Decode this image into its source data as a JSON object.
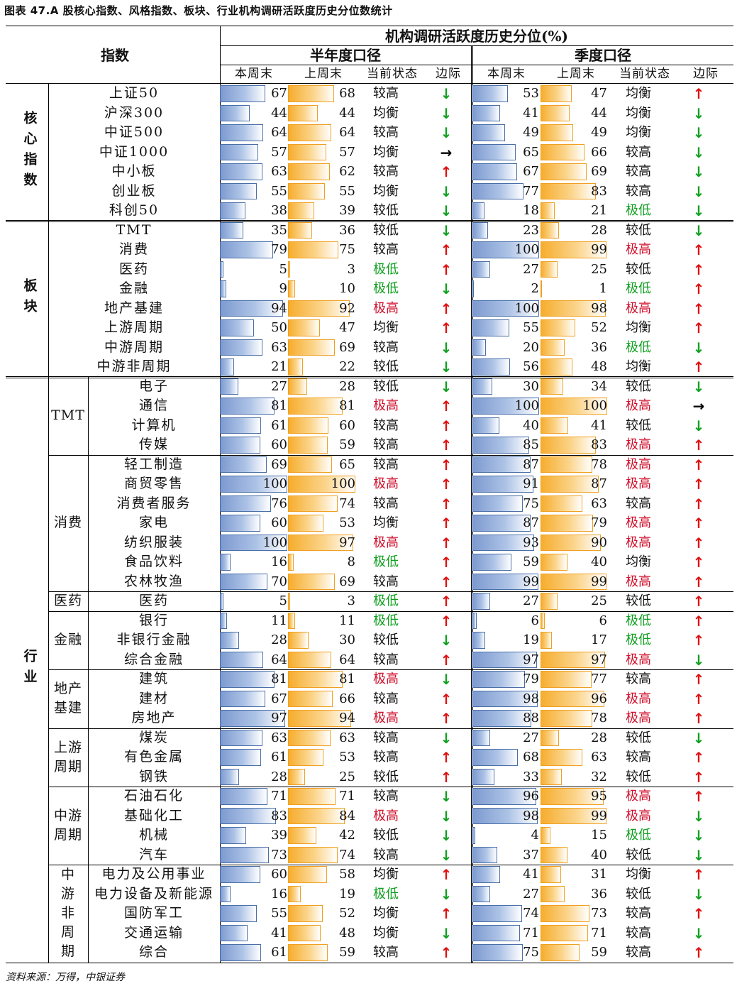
{
  "title": "图表 47.A 股核心指数、风格指数、板块、行业机构调研活跃度历史分位数统计",
  "source": "资料来源：万得，中银证券",
  "header": {
    "index_col": "指数",
    "main": "机构调研活跃度历史分位(%)",
    "half_year": "半年度口径",
    "quarter": "季度口径",
    "sub": [
      "本周末",
      "上周末",
      "当前状态",
      "边际"
    ]
  },
  "colors": {
    "up": "#e01010",
    "down": "#10a020",
    "flat": "#000000",
    "state_high": "#d0102c",
    "state_low": "#10a020"
  },
  "groups": [
    {
      "name": "核心指数",
      "start": 0,
      "end": 6
    },
    {
      "name": "板块",
      "start": 7,
      "end": 14
    },
    {
      "name": "行业",
      "start": 15,
      "end": 44
    }
  ],
  "subgroups": [
    {
      "name": "TMT",
      "start": 15,
      "end": 18
    },
    {
      "name": "消费",
      "start": 19,
      "end": 25
    },
    {
      "name": "医药",
      "start": 26,
      "end": 26
    },
    {
      "name": "金融",
      "start": 27,
      "end": 29
    },
    {
      "name": "地产基建",
      "start": 30,
      "end": 32
    },
    {
      "name": "上游周期",
      "start": 33,
      "end": 35
    },
    {
      "name": "中游周期",
      "start": 36,
      "end": 39
    },
    {
      "name": "中游非周期",
      "start": 40,
      "end": 44
    }
  ],
  "rows": [
    {
      "name": "上证50",
      "h": [
        67,
        68,
        "较高",
        "down"
      ],
      "q": [
        53,
        47,
        "均衡",
        "up"
      ]
    },
    {
      "name": "沪深300",
      "h": [
        44,
        44,
        "均衡",
        "down"
      ],
      "q": [
        41,
        44,
        "均衡",
        "down"
      ]
    },
    {
      "name": "中证500",
      "h": [
        64,
        64,
        "较高",
        "down"
      ],
      "q": [
        49,
        49,
        "均衡",
        "down"
      ]
    },
    {
      "name": "中证1000",
      "h": [
        57,
        57,
        "均衡",
        "flat"
      ],
      "q": [
        65,
        66,
        "较高",
        "down"
      ]
    },
    {
      "name": "中小板",
      "h": [
        63,
        62,
        "较高",
        "up"
      ],
      "q": [
        67,
        69,
        "较高",
        "down"
      ]
    },
    {
      "name": "创业板",
      "h": [
        55,
        55,
        "均衡",
        "down"
      ],
      "q": [
        77,
        83,
        "较高",
        "down"
      ]
    },
    {
      "name": "科创50",
      "h": [
        38,
        39,
        "较低",
        "down"
      ],
      "q": [
        18,
        21,
        "极低",
        "down"
      ]
    },
    {
      "name": "TMT",
      "h": [
        35,
        36,
        "较低",
        "down"
      ],
      "q": [
        23,
        28,
        "较低",
        "down"
      ]
    },
    {
      "name": "消费",
      "h": [
        79,
        75,
        "较高",
        "up"
      ],
      "q": [
        100,
        99,
        "极高",
        "up"
      ]
    },
    {
      "name": "医药",
      "h": [
        5,
        3,
        "极低",
        "up"
      ],
      "q": [
        27,
        25,
        "较低",
        "up"
      ]
    },
    {
      "name": "金融",
      "h": [
        9,
        10,
        "极低",
        "down"
      ],
      "q": [
        2,
        1,
        "极低",
        "up"
      ]
    },
    {
      "name": "地产基建",
      "h": [
        94,
        92,
        "极高",
        "up"
      ],
      "q": [
        100,
        98,
        "极高",
        "up"
      ]
    },
    {
      "name": "上游周期",
      "h": [
        50,
        47,
        "均衡",
        "up"
      ],
      "q": [
        55,
        52,
        "均衡",
        "up"
      ]
    },
    {
      "name": "中游周期",
      "h": [
        63,
        69,
        "较高",
        "down"
      ],
      "q": [
        20,
        36,
        "极低",
        "down"
      ]
    },
    {
      "name": "中游非周期",
      "h": [
        21,
        22,
        "较低",
        "down"
      ],
      "q": [
        56,
        48,
        "均衡",
        "up"
      ]
    },
    {
      "name": "电子",
      "h": [
        27,
        28,
        "较低",
        "down"
      ],
      "q": [
        30,
        34,
        "较低",
        "down"
      ]
    },
    {
      "name": "通信",
      "h": [
        81,
        81,
        "极高",
        "up"
      ],
      "q": [
        100,
        100,
        "极高",
        "flat"
      ]
    },
    {
      "name": "计算机",
      "h": [
        61,
        60,
        "较高",
        "up"
      ],
      "q": [
        40,
        41,
        "较低",
        "down"
      ]
    },
    {
      "name": "传媒",
      "h": [
        60,
        59,
        "较高",
        "up"
      ],
      "q": [
        85,
        83,
        "极高",
        "up"
      ]
    },
    {
      "name": "轻工制造",
      "h": [
        69,
        65,
        "较高",
        "up"
      ],
      "q": [
        87,
        78,
        "极高",
        "up"
      ]
    },
    {
      "name": "商贸零售",
      "h": [
        100,
        100,
        "极高",
        "up"
      ],
      "q": [
        91,
        87,
        "极高",
        "up"
      ]
    },
    {
      "name": "消费者服务",
      "h": [
        76,
        74,
        "较高",
        "up"
      ],
      "q": [
        75,
        63,
        "较高",
        "up"
      ]
    },
    {
      "name": "家电",
      "h": [
        60,
        53,
        "均衡",
        "up"
      ],
      "q": [
        87,
        79,
        "极高",
        "up"
      ]
    },
    {
      "name": "纺织服装",
      "h": [
        100,
        97,
        "极高",
        "up"
      ],
      "q": [
        93,
        90,
        "极高",
        "up"
      ]
    },
    {
      "name": "食品饮料",
      "h": [
        16,
        8,
        "极低",
        "up"
      ],
      "q": [
        59,
        40,
        "均衡",
        "up"
      ]
    },
    {
      "name": "农林牧渔",
      "h": [
        70,
        69,
        "较高",
        "up"
      ],
      "q": [
        99,
        99,
        "极高",
        "up"
      ]
    },
    {
      "name": "医药",
      "h": [
        5,
        3,
        "极低",
        "up"
      ],
      "q": [
        27,
        25,
        "较低",
        "up"
      ]
    },
    {
      "name": "银行",
      "h": [
        11,
        11,
        "极低",
        "up"
      ],
      "q": [
        6,
        6,
        "极低",
        "up"
      ]
    },
    {
      "name": "非银行金融",
      "h": [
        28,
        30,
        "较低",
        "down"
      ],
      "q": [
        19,
        17,
        "极低",
        "up"
      ]
    },
    {
      "name": "综合金融",
      "h": [
        64,
        64,
        "较高",
        "up"
      ],
      "q": [
        97,
        97,
        "极高",
        "down"
      ]
    },
    {
      "name": "建筑",
      "h": [
        81,
        81,
        "极高",
        "down"
      ],
      "q": [
        79,
        77,
        "较高",
        "up"
      ]
    },
    {
      "name": "建材",
      "h": [
        67,
        66,
        "较高",
        "up"
      ],
      "q": [
        98,
        96,
        "极高",
        "up"
      ]
    },
    {
      "name": "房地产",
      "h": [
        97,
        94,
        "极高",
        "up"
      ],
      "q": [
        88,
        78,
        "极高",
        "up"
      ]
    },
    {
      "name": "煤炭",
      "h": [
        63,
        63,
        "较高",
        "down"
      ],
      "q": [
        27,
        28,
        "较低",
        "down"
      ]
    },
    {
      "name": "有色金属",
      "h": [
        61,
        53,
        "较高",
        "up"
      ],
      "q": [
        68,
        63,
        "较高",
        "up"
      ]
    },
    {
      "name": "钢铁",
      "h": [
        28,
        25,
        "较低",
        "up"
      ],
      "q": [
        33,
        32,
        "较低",
        "up"
      ]
    },
    {
      "name": "石油石化",
      "h": [
        71,
        71,
        "较高",
        "down"
      ],
      "q": [
        96,
        95,
        "极高",
        "up"
      ]
    },
    {
      "name": "基础化工",
      "h": [
        83,
        84,
        "极高",
        "down"
      ],
      "q": [
        98,
        99,
        "极高",
        "down"
      ]
    },
    {
      "name": "机械",
      "h": [
        39,
        42,
        "较低",
        "down"
      ],
      "q": [
        4,
        15,
        "极低",
        "down"
      ]
    },
    {
      "name": "汽车",
      "h": [
        73,
        74,
        "较高",
        "down"
      ],
      "q": [
        37,
        40,
        "较低",
        "down"
      ]
    },
    {
      "name": "电力及公用事业",
      "h": [
        60,
        58,
        "均衡",
        "up"
      ],
      "q": [
        41,
        31,
        "均衡",
        "up"
      ]
    },
    {
      "name": "电力设备及新能源",
      "h": [
        16,
        19,
        "极低",
        "down"
      ],
      "q": [
        27,
        36,
        "较低",
        "down"
      ]
    },
    {
      "name": "国防军工",
      "h": [
        55,
        52,
        "均衡",
        "up"
      ],
      "q": [
        74,
        73,
        "较高",
        "up"
      ]
    },
    {
      "name": "交通运输",
      "h": [
        41,
        48,
        "均衡",
        "down"
      ],
      "q": [
        71,
        71,
        "较高",
        "down"
      ]
    },
    {
      "name": "综合",
      "h": [
        61,
        59,
        "较高",
        "up"
      ],
      "q": [
        75,
        59,
        "较高",
        "up"
      ]
    }
  ]
}
